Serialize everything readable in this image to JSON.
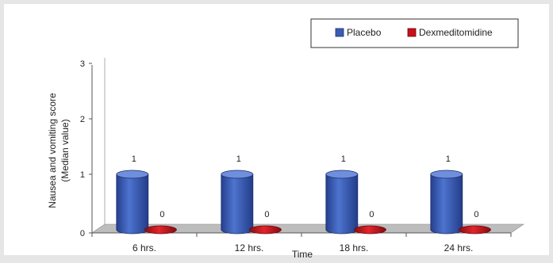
{
  "chart_data": {
    "type": "bar",
    "title": "",
    "categories": [
      "6 hrs.",
      "12 hrs.",
      "18 hrs.",
      "24 hrs."
    ],
    "series": [
      {
        "name": "Placebo",
        "values": [
          1,
          1,
          1,
          1
        ],
        "color": "#3a5db4"
      },
      {
        "name": "Dexmeditomidine",
        "values": [
          0,
          0,
          0,
          0
        ],
        "color": "#c8101a"
      }
    ],
    "value_labels": [
      [
        "1",
        "1",
        "1",
        "1"
      ],
      [
        "0",
        "0",
        "0",
        "0"
      ]
    ],
    "xlabel": "Time",
    "ylabel_lines": [
      "Nausea and vomiting score",
      "(Median value)"
    ],
    "ylim": [
      0,
      3
    ],
    "yticks": [
      0,
      1,
      2,
      3
    ],
    "ytick_labels": [
      "0",
      "1",
      "2",
      "3"
    ],
    "grid": false,
    "legend_position": "top-right",
    "three_d": true
  }
}
